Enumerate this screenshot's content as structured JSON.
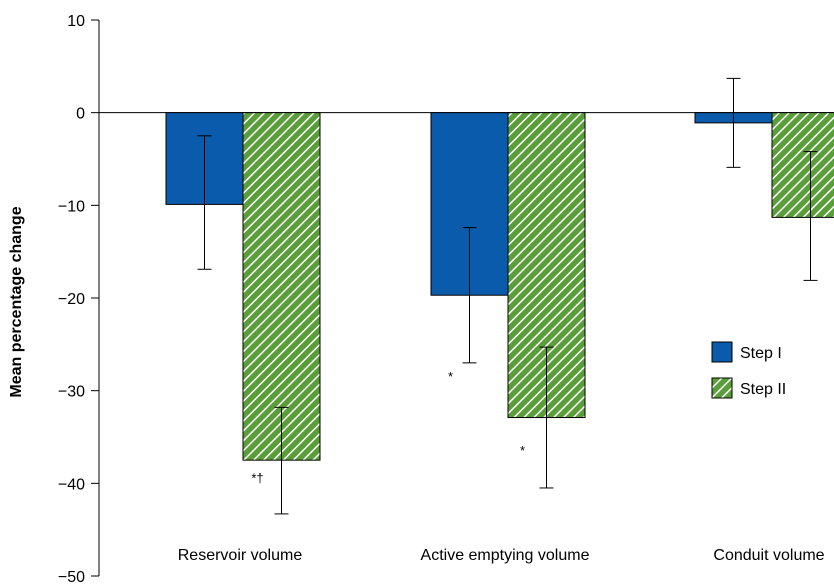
{
  "chart_data": {
    "type": "bar",
    "ylabel": "Mean percentage change",
    "xlabel": "",
    "ylim": [
      -50,
      10
    ],
    "yticks": [
      10,
      0,
      -10,
      -20,
      -30,
      -40,
      -50
    ],
    "ytick_labels": [
      "10",
      "0",
      "−10",
      "−20",
      "−30",
      "−40",
      "−50"
    ],
    "categories": [
      "Reservoir volume",
      "Active emptying volume",
      "Conduit volume"
    ],
    "series": [
      {
        "name": "Step I",
        "color": "#0a5bab",
        "pattern": "solid",
        "values": [
          -9.9,
          -19.7,
          -1.1
        ],
        "error_low": [
          -16.9,
          -27.0,
          -5.9
        ],
        "error_high": [
          -2.5,
          -12.4,
          3.7
        ]
      },
      {
        "name": "Step II",
        "color": "#5a9e3a",
        "pattern": "diagonal-hatch",
        "values": [
          -37.5,
          -32.9,
          -11.3
        ],
        "error_low": [
          -43.3,
          -40.5,
          -18.1
        ],
        "error_high": [
          -31.8,
          -25.3,
          -4.2
        ]
      }
    ],
    "annotations": [
      {
        "text": "*†",
        "category": "Reservoir volume",
        "series": "Step II",
        "at_value": -39.5
      },
      {
        "text": "*",
        "category": "Active emptying volume",
        "series": "Step I",
        "at_value": -28.5
      },
      {
        "text": "*",
        "category": "Active emptying volume",
        "series": "Step II",
        "at_value": -36.5
      }
    ],
    "legend": {
      "placement": "right",
      "entries": [
        "Step I",
        "Step II"
      ]
    },
    "grid": false
  }
}
